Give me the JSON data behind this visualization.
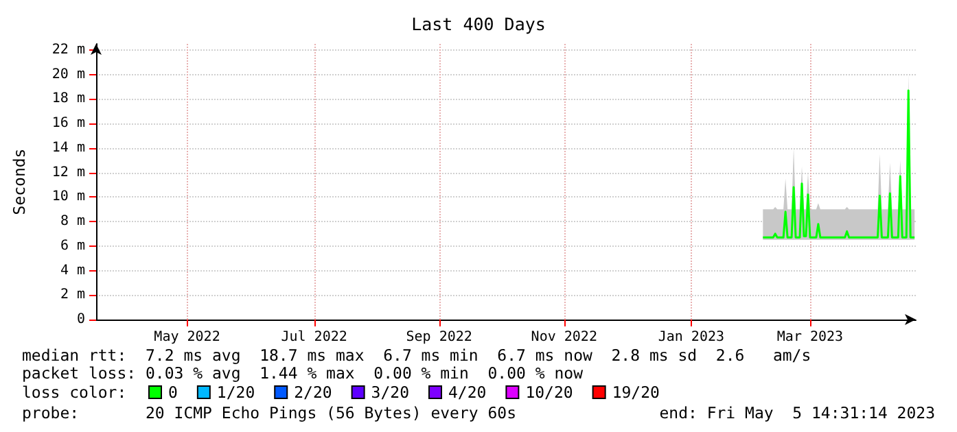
{
  "chart_data": {
    "type": "line",
    "title": "Last 400 Days",
    "ylabel": "Seconds",
    "x": [
      "2023-02-20",
      "2023-02-25",
      "2023-02-26",
      "2023-02-27",
      "2023-03-02",
      "2023-03-03",
      "2023-03-04",
      "2023-03-06",
      "2023-03-07",
      "2023-03-08",
      "2023-03-10",
      "2023-03-11",
      "2023-03-12",
      "2023-03-13",
      "2023-03-14",
      "2023-03-15",
      "2023-03-18",
      "2023-03-19",
      "2023-03-20",
      "2023-04-01",
      "2023-04-02",
      "2023-04-03",
      "2023-04-17",
      "2023-04-18",
      "2023-04-19",
      "2023-04-22",
      "2023-04-23",
      "2023-04-24",
      "2023-04-27",
      "2023-04-28",
      "2023-04-29",
      "2023-05-01",
      "2023-05-02",
      "2023-05-03",
      "2023-05-05"
    ],
    "series": [
      {
        "name": "0",
        "color": "#00ff00",
        "values": [
          6.7,
          6.7,
          7.0,
          6.7,
          6.7,
          8.8,
          6.7,
          6.7,
          10.8,
          6.7,
          6.7,
          11.1,
          6.8,
          6.8,
          10.2,
          6.7,
          6.7,
          7.8,
          6.7,
          6.7,
          7.2,
          6.7,
          6.7,
          10.1,
          6.7,
          6.7,
          10.3,
          6.7,
          6.7,
          11.7,
          6.7,
          6.7,
          18.7,
          6.7,
          6.7
        ],
        "lower": [
          6.5,
          6.5,
          6.5,
          6.5,
          6.5,
          6.5,
          6.5,
          6.5,
          6.5,
          6.5,
          6.5,
          6.5,
          6.5,
          6.5,
          6.5,
          6.5,
          6.5,
          6.5,
          6.5,
          6.5,
          6.5,
          6.5,
          6.5,
          6.5,
          6.5,
          6.5,
          6.5,
          6.5,
          6.5,
          6.5,
          6.5,
          6.5,
          6.5,
          6.5,
          6.5
        ],
        "upper": [
          9.0,
          9.0,
          9.2,
          9.0,
          9.0,
          11.5,
          9.0,
          9.0,
          14.0,
          9.0,
          9.0,
          12.5,
          9.0,
          9.0,
          12.0,
          9.0,
          9.0,
          9.5,
          9.0,
          9.0,
          9.2,
          9.0,
          9.0,
          13.5,
          9.0,
          9.0,
          12.8,
          9.0,
          9.0,
          13.0,
          9.0,
          9.0,
          20.0,
          9.0,
          9.0
        ]
      },
      {
        "name": "1/20",
        "color": "#00b8ff",
        "values": [
          null,
          null,
          null,
          null,
          null,
          null,
          null,
          null,
          null,
          null,
          null,
          null,
          null,
          null,
          null,
          null,
          null,
          null,
          null,
          null,
          null,
          null,
          null,
          null,
          null,
          null,
          null,
          null,
          null,
          null,
          null,
          null,
          null,
          null,
          null
        ]
      },
      {
        "name": "2/20",
        "color": "#0059ff",
        "values": [
          null,
          null,
          null,
          null,
          null,
          null,
          null,
          null,
          null,
          null,
          null,
          null,
          null,
          null,
          null,
          null,
          null,
          null,
          null,
          null,
          null,
          null,
          null,
          null,
          null,
          null,
          null,
          null,
          null,
          null,
          null,
          null,
          null,
          null,
          null
        ]
      },
      {
        "name": "3/20",
        "color": "#5e00ff",
        "values": [
          null,
          null,
          null,
          null,
          null,
          null,
          null,
          null,
          null,
          null,
          null,
          null,
          null,
          null,
          null,
          null,
          null,
          null,
          null,
          null,
          null,
          null,
          null,
          null,
          null,
          null,
          null,
          null,
          null,
          null,
          null,
          null,
          null,
          null,
          null
        ]
      },
      {
        "name": "4/20",
        "color": "#7e00ff",
        "values": [
          null,
          null,
          null,
          null,
          null,
          null,
          null,
          null,
          null,
          null,
          null,
          null,
          null,
          null,
          null,
          null,
          null,
          null,
          null,
          null,
          null,
          null,
          null,
          null,
          null,
          null,
          null,
          null,
          null,
          null,
          null,
          null,
          null,
          null,
          null
        ]
      },
      {
        "name": "10/20",
        "color": "#dd00ff",
        "values": [
          null,
          null,
          null,
          null,
          null,
          null,
          null,
          null,
          null,
          null,
          null,
          null,
          null,
          null,
          null,
          null,
          null,
          null,
          null,
          null,
          null,
          null,
          null,
          null,
          null,
          null,
          null,
          null,
          null,
          null,
          null,
          null,
          null,
          null,
          null
        ]
      },
      {
        "name": "19/20",
        "color": "#ff0000",
        "values": [
          null,
          null,
          null,
          null,
          null,
          null,
          null,
          null,
          null,
          null,
          null,
          null,
          null,
          null,
          null,
          null,
          null,
          null,
          null,
          null,
          null,
          null,
          null,
          null,
          null,
          null,
          null,
          null,
          null,
          null,
          null,
          null,
          null,
          null,
          null
        ]
      }
    ],
    "xlim": [
      "2022-03-31T14:31",
      "2023-05-05T14:31"
    ],
    "xticks": [
      {
        "value": "2022-05-15",
        "label": "May 2022"
      },
      {
        "value": "2022-07-16",
        "label": "Jul 2022"
      },
      {
        "value": "2022-09-15",
        "label": "Sep 2022"
      },
      {
        "value": "2022-11-15",
        "label": "Nov 2022"
      },
      {
        "value": "2023-01-16",
        "label": "Jan 2023"
      },
      {
        "value": "2023-03-15",
        "label": "Mar 2023"
      }
    ],
    "ylim": [
      0,
      22.5
    ],
    "yticks": [
      0,
      {
        "value": 2,
        "label": "2 m"
      },
      {
        "value": 4,
        "label": "4 m"
      },
      {
        "value": 6,
        "label": "6 m"
      },
      {
        "value": 8,
        "label": "8 m"
      },
      {
        "value": 10,
        "label": "10 m"
      },
      {
        "value": 12,
        "label": "12 m"
      },
      {
        "value": 14,
        "label": "14 m"
      },
      {
        "value": 16,
        "label": "16 m"
      },
      {
        "value": 18,
        "label": "18 m"
      },
      {
        "value": 20,
        "label": "20 m"
      },
      {
        "value": 22,
        "label": "22 m"
      }
    ],
    "grid": true,
    "legend": "bottom left",
    "marker": "none",
    "line_style": "solid",
    "annotations": [
      "median rtt:  7.2 ms avg  18.7 ms max  6.7 ms min  6.7 ms now  2.8 ms sd  2.6   am/s",
      "packet loss: 0.03 % avg  1.44 % max  0.00 % min  0.00 % now",
      "loss color:",
      "probe:       20 ICMP Echo Pings (56 Bytes) every 60s",
      "end: Fri May  5 14:31:14 2023"
    ]
  }
}
